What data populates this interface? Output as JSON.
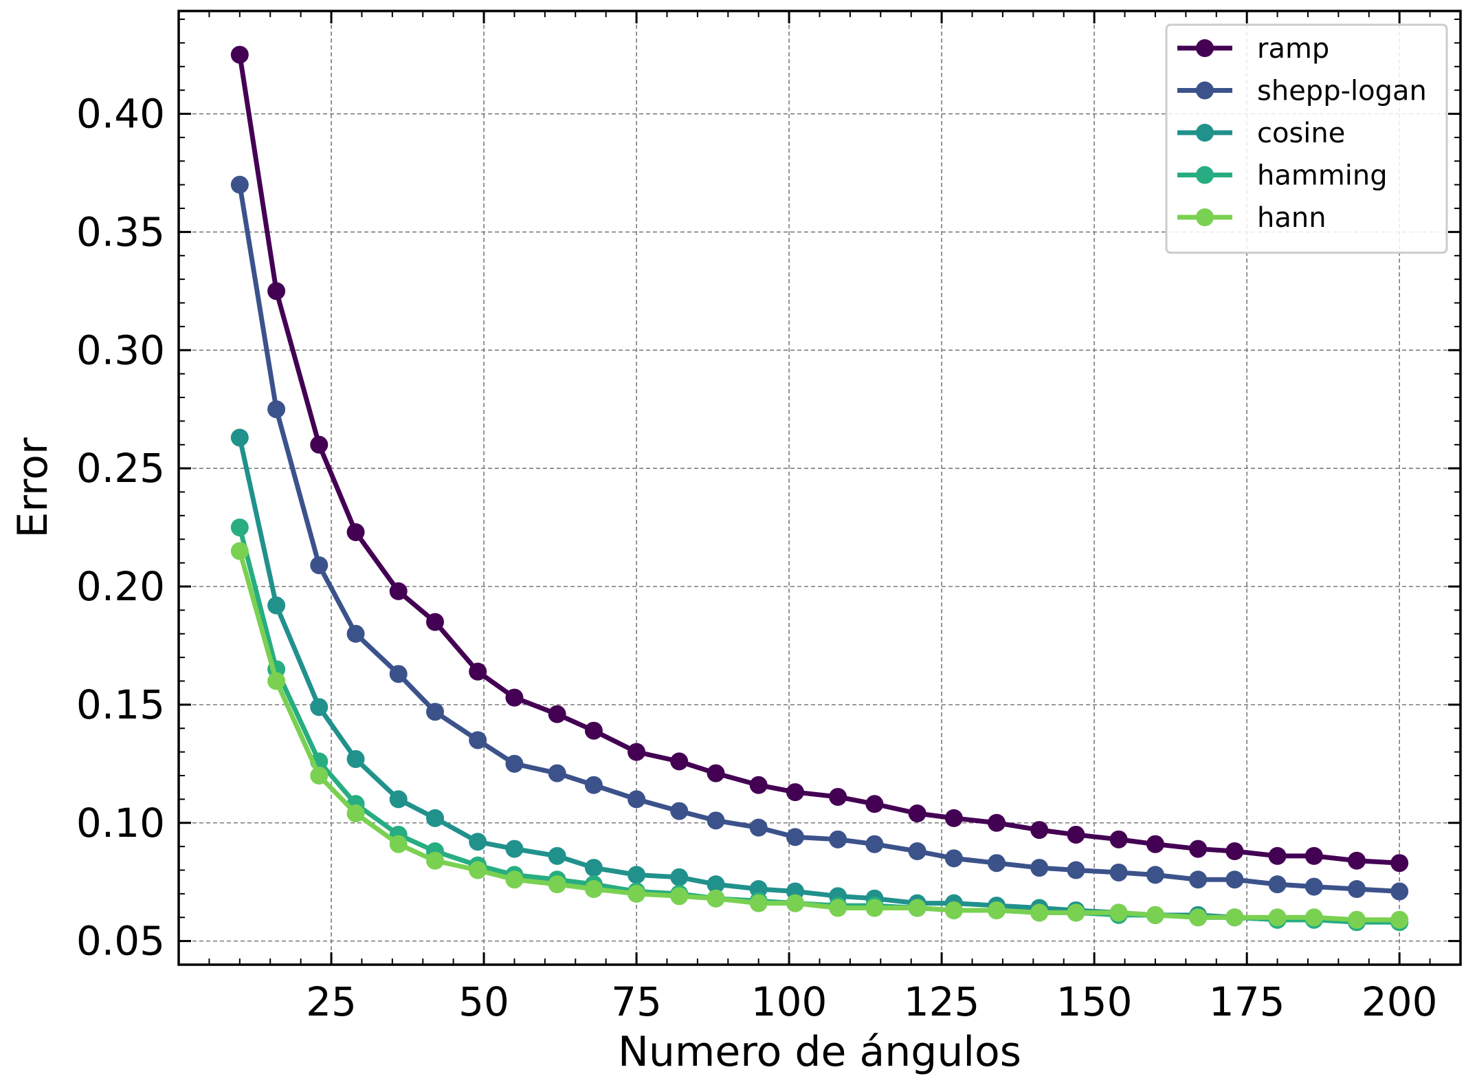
{
  "chart_data": {
    "type": "line",
    "title": "",
    "xlabel": "Numero de ángulos",
    "ylabel": "Error",
    "xlim": [
      0,
      210
    ],
    "ylim": [
      0.04,
      0.4435
    ],
    "xticks": [
      25,
      50,
      75,
      100,
      125,
      150,
      175,
      200
    ],
    "xtick_labels": [
      "25",
      "50",
      "75",
      "100",
      "125",
      "150",
      "175",
      "200"
    ],
    "yticks": [
      0.05,
      0.1,
      0.15,
      0.2,
      0.25,
      0.3,
      0.35,
      0.4
    ],
    "ytick_labels": [
      "0.05",
      "0.10",
      "0.15",
      "0.20",
      "0.25",
      "0.30",
      "0.35",
      "0.40"
    ],
    "grid": true,
    "legend_position": "top-right",
    "x": [
      10,
      16,
      23,
      29,
      36,
      42,
      49,
      55,
      62,
      68,
      75,
      82,
      88,
      95,
      101,
      108,
      114,
      121,
      127,
      134,
      141,
      147,
      154,
      160,
      167,
      173,
      180,
      186,
      193,
      200
    ],
    "series": [
      {
        "name": "ramp",
        "color": "#440154",
        "values": [
          0.425,
          0.325,
          0.26,
          0.223,
          0.198,
          0.185,
          0.164,
          0.153,
          0.146,
          0.139,
          0.13,
          0.126,
          0.121,
          0.116,
          0.113,
          0.111,
          0.108,
          0.104,
          0.102,
          0.1,
          0.097,
          0.095,
          0.093,
          0.091,
          0.089,
          0.088,
          0.086,
          0.086,
          0.084,
          0.083
        ]
      },
      {
        "name": "shepp-logan",
        "color": "#3b528b",
        "values": [
          0.37,
          0.275,
          0.209,
          0.18,
          0.163,
          0.147,
          0.135,
          0.125,
          0.121,
          0.116,
          0.11,
          0.105,
          0.101,
          0.098,
          0.094,
          0.093,
          0.091,
          0.088,
          0.085,
          0.083,
          0.081,
          0.08,
          0.079,
          0.078,
          0.076,
          0.076,
          0.074,
          0.073,
          0.072,
          0.071
        ]
      },
      {
        "name": "cosine",
        "color": "#21918c",
        "values": [
          0.263,
          0.192,
          0.149,
          0.127,
          0.11,
          0.102,
          0.092,
          0.089,
          0.086,
          0.081,
          0.078,
          0.077,
          0.074,
          0.072,
          0.071,
          0.069,
          0.068,
          0.066,
          0.066,
          0.065,
          0.064,
          0.063,
          0.062,
          0.061,
          0.061,
          0.06,
          0.059,
          0.059,
          0.058,
          0.058
        ]
      },
      {
        "name": "hamming",
        "color": "#27ad81",
        "values": [
          0.225,
          0.165,
          0.126,
          0.108,
          0.095,
          0.088,
          0.082,
          0.078,
          0.076,
          0.074,
          0.071,
          0.07,
          0.068,
          0.067,
          0.066,
          0.065,
          0.065,
          0.064,
          0.063,
          0.063,
          0.062,
          0.062,
          0.061,
          0.061,
          0.06,
          0.06,
          0.059,
          0.059,
          0.058,
          0.058
        ]
      },
      {
        "name": "hann",
        "color": "#7ad151",
        "values": [
          0.215,
          0.16,
          0.12,
          0.104,
          0.091,
          0.084,
          0.08,
          0.076,
          0.074,
          0.072,
          0.07,
          0.069,
          0.068,
          0.066,
          0.066,
          0.064,
          0.064,
          0.064,
          0.063,
          0.063,
          0.062,
          0.062,
          0.062,
          0.061,
          0.06,
          0.06,
          0.06,
          0.06,
          0.059,
          0.059
        ]
      }
    ]
  }
}
